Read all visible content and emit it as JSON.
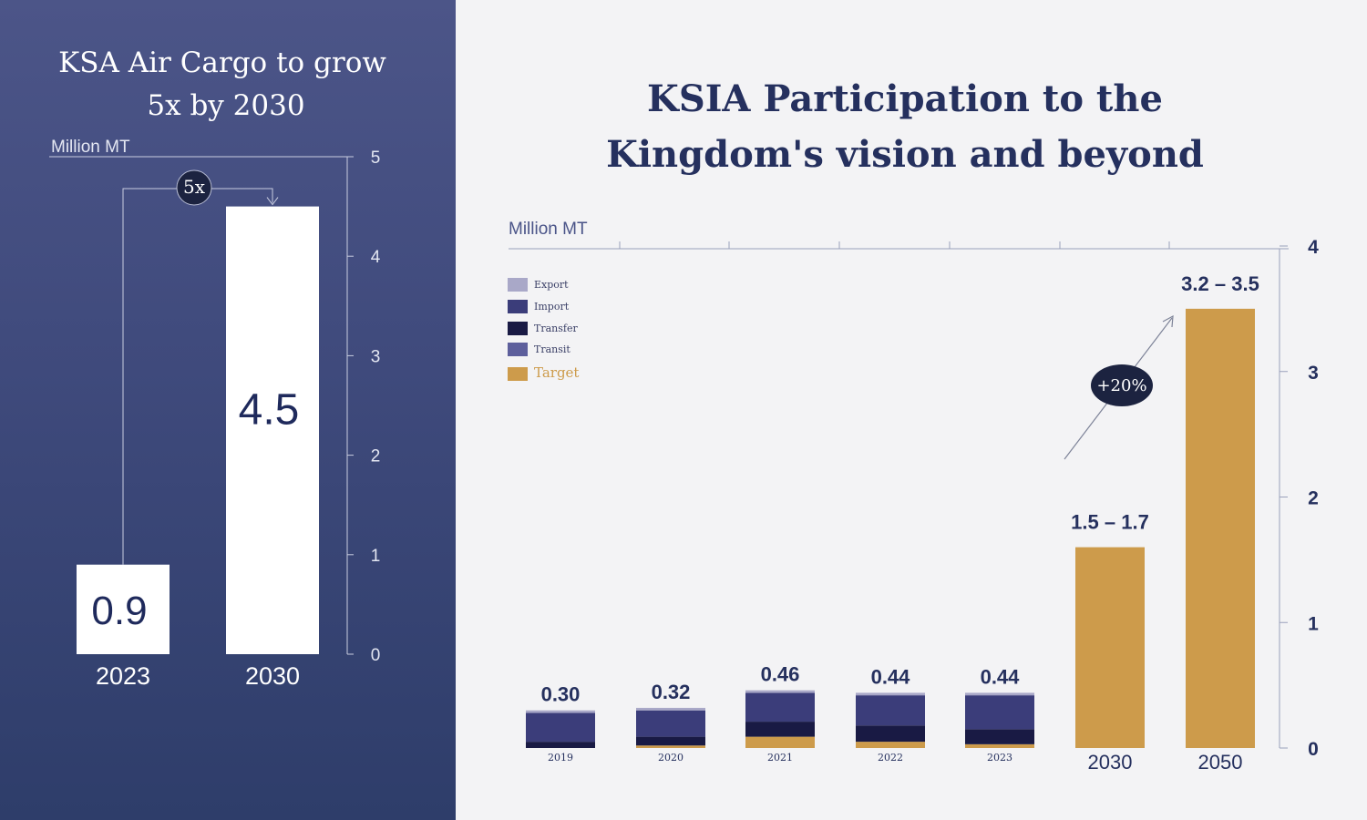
{
  "left": {
    "title_line1": "KSA  Air Cargo to grow",
    "title_line2": "5x by 2030",
    "unit": "Million MT",
    "growth_badge": "5x",
    "colors": {
      "bar": "#ffffff",
      "value_text": "#1f2a5c",
      "axis": "#c9cde0",
      "badge": "#1c2340"
    }
  },
  "right": {
    "title_line1": "KSIA Participation to the",
    "title_line2": "Kingdom's vision and beyond",
    "unit": "Million MT",
    "growth_badge": "+20%",
    "legend": [
      {
        "label": "Export",
        "color": "#a9a8c8"
      },
      {
        "label": "Import",
        "color": "#3b3d7a"
      },
      {
        "label": "Transfer",
        "color": "#191a44"
      },
      {
        "label": "Transit",
        "color": "#5d5f9c"
      },
      {
        "label": "Target",
        "color": "#cd9b4b"
      }
    ]
  },
  "chart_data": [
    {
      "type": "bar",
      "title": "KSA  Air Cargo to grow 5x by 2030",
      "ylabel": "Million MT",
      "categories": [
        "2023",
        "2030"
      ],
      "values": [
        0.9,
        4.5
      ],
      "value_labels": [
        "0.9",
        "4.5"
      ],
      "ylim": [
        0,
        5
      ],
      "yticks": [
        "0",
        "1",
        "2",
        "3",
        "4",
        "5"
      ],
      "axis_side": "right",
      "annotation": "5x"
    },
    {
      "type": "bar",
      "title": "KSIA Participation to the Kingdom's vision and beyond",
      "ylabel": "Million MT",
      "categories": [
        "2019",
        "2020",
        "2021",
        "2022",
        "2023",
        "2030",
        "2050"
      ],
      "stack_order": [
        "Target",
        "Transit",
        "Transfer",
        "Import",
        "Export"
      ],
      "series": [
        {
          "name": "Target",
          "values": [
            0,
            0.02,
            0.09,
            0.05,
            0.03,
            1.6,
            3.5
          ]
        },
        {
          "name": "Transit",
          "values": [
            0,
            0,
            0,
            0,
            0,
            0,
            0
          ]
        },
        {
          "name": "Transfer",
          "values": [
            0.05,
            0.07,
            0.12,
            0.13,
            0.12,
            0,
            0
          ]
        },
        {
          "name": "Import",
          "values": [
            0.23,
            0.21,
            0.23,
            0.24,
            0.27,
            0,
            0
          ]
        },
        {
          "name": "Export",
          "values": [
            0.02,
            0.02,
            0.02,
            0.02,
            0.02,
            0,
            0
          ]
        }
      ],
      "value_labels": [
        "0.30",
        "0.32",
        "0.46",
        "0.44",
        "0.44",
        "1.5 – 1.7",
        "3.2 – 3.5"
      ],
      "ylim": [
        0,
        4
      ],
      "yticks": [
        "0",
        "1",
        "2",
        "3",
        "4"
      ],
      "axis_side": "right",
      "legend_position": "top-left",
      "annotation": "+20%"
    }
  ]
}
